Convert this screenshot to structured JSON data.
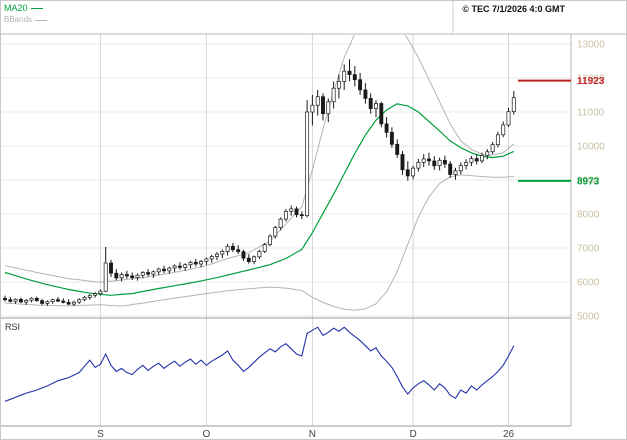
{
  "header": {
    "legend": [
      {
        "label": "MA20",
        "color": "#00a03c"
      },
      {
        "label": "BBands",
        "color": "#b4b4b4"
      }
    ],
    "copyright": "© TEC 7/1/2026 4:0 GMT"
  },
  "rsi_pane": {
    "label": "RSI"
  },
  "colors": {
    "ma20": "#00a03c",
    "bbands": "#b4b4b4",
    "candle": "#1a1a1a",
    "rsi": "#2233aa",
    "resistance": "#c02020",
    "support": "#00a03c",
    "axis_label": "#c8c0a0",
    "month_label": "#444444",
    "grid_h": "#e9e9e9",
    "grid_v": "#d6d6d6",
    "frame": "#9a9a9a",
    "frame_light": "#b8b8b8"
  },
  "chart_data": {
    "type": "candlestick",
    "title": "",
    "legend_position": "top-left",
    "grid": true,
    "y_axis": {
      "min": 5000,
      "max": 13000,
      "tick_labels": [
        "13000",
        "12000",
        "11000",
        "10000",
        "9000",
        "8000",
        "7000",
        "6000",
        "5000"
      ]
    },
    "x_axis": {
      "tick_labels": [
        {
          "label": "S",
          "index": 18
        },
        {
          "label": "O",
          "index": 38
        },
        {
          "label": "N",
          "index": 58
        },
        {
          "label": "D",
          "index": 77
        },
        {
          "label": "26",
          "index": 95
        }
      ]
    },
    "levels": [
      {
        "label": "11923",
        "value": 11923,
        "color": "#c02020",
        "role": "resistance"
      },
      {
        "label": "8973",
        "value": 8973,
        "color": "#00a03c",
        "role": "support"
      }
    ],
    "candles": [
      [
        5520,
        5600,
        5420,
        5480
      ],
      [
        5480,
        5560,
        5400,
        5430
      ],
      [
        5430,
        5520,
        5360,
        5490
      ],
      [
        5490,
        5540,
        5380,
        5410
      ],
      [
        5410,
        5500,
        5330,
        5460
      ],
      [
        5460,
        5550,
        5400,
        5520
      ],
      [
        5520,
        5570,
        5420,
        5450
      ],
      [
        5450,
        5500,
        5330,
        5370
      ],
      [
        5370,
        5460,
        5300,
        5420
      ],
      [
        5420,
        5510,
        5360,
        5480
      ],
      [
        5480,
        5560,
        5410,
        5440
      ],
      [
        5440,
        5520,
        5370,
        5400
      ],
      [
        5400,
        5490,
        5320,
        5350
      ],
      [
        5350,
        5450,
        5290,
        5410
      ],
      [
        5410,
        5520,
        5360,
        5480
      ],
      [
        5480,
        5590,
        5430,
        5550
      ],
      [
        5550,
        5640,
        5480,
        5610
      ],
      [
        5610,
        5700,
        5540,
        5660
      ],
      [
        5660,
        5780,
        5600,
        5730
      ],
      [
        5730,
        7030,
        5700,
        6560
      ],
      [
        6560,
        6650,
        6150,
        6260
      ],
      [
        6260,
        6380,
        6050,
        6120
      ],
      [
        6120,
        6280,
        6020,
        6220
      ],
      [
        6220,
        6330,
        6100,
        6180
      ],
      [
        6180,
        6280,
        6060,
        6130
      ],
      [
        6130,
        6250,
        6040,
        6200
      ],
      [
        6200,
        6320,
        6110,
        6280
      ],
      [
        6280,
        6380,
        6160,
        6230
      ],
      [
        6230,
        6340,
        6120,
        6300
      ],
      [
        6300,
        6420,
        6200,
        6380
      ],
      [
        6380,
        6480,
        6260,
        6330
      ],
      [
        6330,
        6450,
        6240,
        6410
      ],
      [
        6410,
        6520,
        6300,
        6470
      ],
      [
        6470,
        6580,
        6360,
        6430
      ],
      [
        6430,
        6550,
        6330,
        6510
      ],
      [
        6510,
        6620,
        6400,
        6580
      ],
      [
        6580,
        6680,
        6460,
        6530
      ],
      [
        6530,
        6650,
        6430,
        6610
      ],
      [
        6610,
        6720,
        6500,
        6680
      ],
      [
        6680,
        6800,
        6570,
        6750
      ],
      [
        6750,
        6880,
        6640,
        6820
      ],
      [
        6820,
        6960,
        6700,
        6900
      ],
      [
        6900,
        7120,
        6780,
        7050
      ],
      [
        7050,
        7150,
        6880,
        6950
      ],
      [
        6950,
        7080,
        6820,
        6890
      ],
      [
        6890,
        6950,
        6620,
        6700
      ],
      [
        6700,
        6820,
        6540,
        6600
      ],
      [
        6600,
        6780,
        6520,
        6740
      ],
      [
        6740,
        6950,
        6680,
        6900
      ],
      [
        6900,
        7150,
        6850,
        7100
      ],
      [
        7100,
        7400,
        7050,
        7350
      ],
      [
        7350,
        7650,
        7280,
        7600
      ],
      [
        7600,
        7900,
        7520,
        7850
      ],
      [
        7850,
        8150,
        7780,
        8080
      ],
      [
        8080,
        8250,
        7950,
        8150
      ],
      [
        8150,
        8220,
        7900,
        7980
      ],
      [
        7980,
        8080,
        7850,
        7950
      ],
      [
        7950,
        11350,
        7900,
        11000
      ],
      [
        11000,
        11500,
        10600,
        11200
      ],
      [
        11200,
        11650,
        10900,
        11450
      ],
      [
        11450,
        11550,
        10750,
        10950
      ],
      [
        10950,
        11400,
        10700,
        11300
      ],
      [
        11300,
        11900,
        11100,
        11700
      ],
      [
        11700,
        12100,
        11400,
        11900
      ],
      [
        11900,
        12400,
        11650,
        12200
      ],
      [
        12200,
        12550,
        11900,
        12100
      ],
      [
        12100,
        12350,
        11750,
        11950
      ],
      [
        11950,
        12150,
        11500,
        11650
      ],
      [
        11650,
        11850,
        11250,
        11400
      ],
      [
        11400,
        11550,
        10950,
        11100
      ],
      [
        11100,
        11350,
        10850,
        11250
      ],
      [
        11250,
        11300,
        10550,
        10650
      ],
      [
        10650,
        10850,
        10250,
        10400
      ],
      [
        10400,
        10550,
        9950,
        10050
      ],
      [
        10050,
        10200,
        9650,
        9750
      ],
      [
        9750,
        9850,
        9150,
        9300
      ],
      [
        9300,
        9550,
        8980,
        9120
      ],
      [
        9120,
        9420,
        9020,
        9350
      ],
      [
        9350,
        9620,
        9250,
        9520
      ],
      [
        9520,
        9760,
        9380,
        9620
      ],
      [
        9620,
        9800,
        9420,
        9560
      ],
      [
        9560,
        9700,
        9300,
        9420
      ],
      [
        9420,
        9660,
        9280,
        9580
      ],
      [
        9580,
        9720,
        9360,
        9470
      ],
      [
        9470,
        9560,
        9060,
        9160
      ],
      [
        9160,
        9360,
        9010,
        9270
      ],
      [
        9270,
        9520,
        9170,
        9430
      ],
      [
        9430,
        9610,
        9310,
        9520
      ],
      [
        9520,
        9710,
        9410,
        9630
      ],
      [
        9630,
        9760,
        9460,
        9560
      ],
      [
        9560,
        9810,
        9500,
        9720
      ],
      [
        9720,
        9910,
        9610,
        9830
      ],
      [
        9830,
        10120,
        9760,
        10040
      ],
      [
        10040,
        10420,
        9960,
        10330
      ],
      [
        10330,
        10720,
        10260,
        10620
      ],
      [
        10620,
        11120,
        10560,
        11010
      ],
      [
        11010,
        11620,
        10920,
        11420
      ]
    ],
    "indicators": {
      "ma20_points": [
        [
          0,
          6280
        ],
        [
          4,
          6090
        ],
        [
          8,
          5920
        ],
        [
          12,
          5780
        ],
        [
          16,
          5670
        ],
        [
          20,
          5610
        ],
        [
          24,
          5660
        ],
        [
          28,
          5780
        ],
        [
          32,
          5890
        ],
        [
          36,
          6000
        ],
        [
          40,
          6130
        ],
        [
          44,
          6280
        ],
        [
          47,
          6390
        ],
        [
          50,
          6510
        ],
        [
          53,
          6690
        ],
        [
          56,
          6960
        ],
        [
          58,
          7450
        ],
        [
          60,
          8020
        ],
        [
          62,
          8580
        ],
        [
          64,
          9180
        ],
        [
          66,
          9780
        ],
        [
          68,
          10320
        ],
        [
          70,
          10760
        ],
        [
          72,
          11060
        ],
        [
          74,
          11240
        ],
        [
          76,
          11180
        ],
        [
          78,
          11000
        ],
        [
          80,
          10720
        ],
        [
          82,
          10440
        ],
        [
          84,
          10150
        ],
        [
          86,
          9950
        ],
        [
          88,
          9800
        ],
        [
          90,
          9700
        ],
        [
          92,
          9660
        ],
        [
          94,
          9700
        ],
        [
          96,
          9840
        ]
      ],
      "bollinger_upper_points": [
        [
          0,
          6480
        ],
        [
          6,
          6280
        ],
        [
          12,
          6100
        ],
        [
          18,
          5990
        ],
        [
          22,
          6060
        ],
        [
          26,
          6130
        ],
        [
          30,
          6230
        ],
        [
          34,
          6340
        ],
        [
          38,
          6480
        ],
        [
          42,
          6690
        ],
        [
          46,
          6860
        ],
        [
          50,
          7210
        ],
        [
          53,
          7710
        ],
        [
          56,
          8210
        ],
        [
          58,
          9300
        ],
        [
          60,
          10500
        ],
        [
          62,
          11600
        ],
        [
          64,
          12600
        ],
        [
          66,
          13300
        ],
        [
          68,
          13750
        ],
        [
          70,
          13900
        ],
        [
          72,
          13850
        ],
        [
          74,
          13600
        ],
        [
          76,
          13150
        ],
        [
          78,
          12600
        ],
        [
          80,
          11950
        ],
        [
          82,
          11300
        ],
        [
          84,
          10650
        ],
        [
          86,
          10150
        ],
        [
          88,
          9900
        ],
        [
          90,
          9760
        ],
        [
          92,
          9730
        ],
        [
          94,
          9800
        ],
        [
          96,
          10060
        ]
      ],
      "bollinger_lower_points": [
        [
          0,
          5380
        ],
        [
          6,
          5320
        ],
        [
          12,
          5300
        ],
        [
          18,
          5330
        ],
        [
          22,
          5290
        ],
        [
          26,
          5380
        ],
        [
          30,
          5480
        ],
        [
          34,
          5570
        ],
        [
          38,
          5660
        ],
        [
          42,
          5740
        ],
        [
          46,
          5800
        ],
        [
          50,
          5850
        ],
        [
          53,
          5820
        ],
        [
          56,
          5750
        ],
        [
          58,
          5550
        ],
        [
          60,
          5400
        ],
        [
          62,
          5280
        ],
        [
          64,
          5200
        ],
        [
          66,
          5170
        ],
        [
          68,
          5210
        ],
        [
          70,
          5360
        ],
        [
          72,
          5710
        ],
        [
          74,
          6310
        ],
        [
          76,
          7110
        ],
        [
          78,
          7910
        ],
        [
          80,
          8510
        ],
        [
          82,
          8900
        ],
        [
          84,
          9090
        ],
        [
          86,
          9150
        ],
        [
          88,
          9130
        ],
        [
          90,
          9100
        ],
        [
          92,
          9080
        ],
        [
          94,
          9080
        ],
        [
          96,
          9100
        ]
      ]
    },
    "rsi_points": [
      [
        0,
        22
      ],
      [
        2,
        26
      ],
      [
        4,
        30
      ],
      [
        6,
        33
      ],
      [
        8,
        37
      ],
      [
        10,
        42
      ],
      [
        12,
        45
      ],
      [
        14,
        50
      ],
      [
        15,
        56
      ],
      [
        16,
        62
      ],
      [
        17,
        55
      ],
      [
        18,
        58
      ],
      [
        19,
        68
      ],
      [
        20,
        57
      ],
      [
        21,
        51
      ],
      [
        22,
        54
      ],
      [
        23,
        50
      ],
      [
        24,
        48
      ],
      [
        25,
        53
      ],
      [
        26,
        57
      ],
      [
        27,
        52
      ],
      [
        28,
        56
      ],
      [
        29,
        59
      ],
      [
        30,
        54
      ],
      [
        31,
        58
      ],
      [
        32,
        61
      ],
      [
        33,
        56
      ],
      [
        34,
        60
      ],
      [
        35,
        63
      ],
      [
        36,
        58
      ],
      [
        37,
        62
      ],
      [
        38,
        57
      ],
      [
        39,
        61
      ],
      [
        40,
        64
      ],
      [
        41,
        67
      ],
      [
        42,
        71
      ],
      [
        43,
        62
      ],
      [
        44,
        57
      ],
      [
        45,
        51
      ],
      [
        46,
        55
      ],
      [
        47,
        60
      ],
      [
        48,
        65
      ],
      [
        49,
        69
      ],
      [
        50,
        73
      ],
      [
        51,
        70
      ],
      [
        52,
        75
      ],
      [
        53,
        78
      ],
      [
        54,
        73
      ],
      [
        55,
        68
      ],
      [
        56,
        66
      ],
      [
        57,
        88
      ],
      [
        58,
        91
      ],
      [
        59,
        94
      ],
      [
        60,
        86
      ],
      [
        61,
        89
      ],
      [
        62,
        93
      ],
      [
        63,
        90
      ],
      [
        64,
        94
      ],
      [
        65,
        89
      ],
      [
        66,
        85
      ],
      [
        67,
        81
      ],
      [
        68,
        76
      ],
      [
        69,
        71
      ],
      [
        70,
        74
      ],
      [
        71,
        66
      ],
      [
        72,
        61
      ],
      [
        73,
        55
      ],
      [
        74,
        46
      ],
      [
        75,
        36
      ],
      [
        76,
        29
      ],
      [
        77,
        35
      ],
      [
        78,
        39
      ],
      [
        79,
        42
      ],
      [
        80,
        38
      ],
      [
        81,
        33
      ],
      [
        82,
        39
      ],
      [
        83,
        35
      ],
      [
        84,
        28
      ],
      [
        85,
        25
      ],
      [
        86,
        33
      ],
      [
        87,
        30
      ],
      [
        88,
        37
      ],
      [
        89,
        33
      ],
      [
        90,
        38
      ],
      [
        91,
        42
      ],
      [
        92,
        46
      ],
      [
        93,
        51
      ],
      [
        94,
        57
      ],
      [
        95,
        66
      ],
      [
        96,
        76
      ]
    ]
  }
}
